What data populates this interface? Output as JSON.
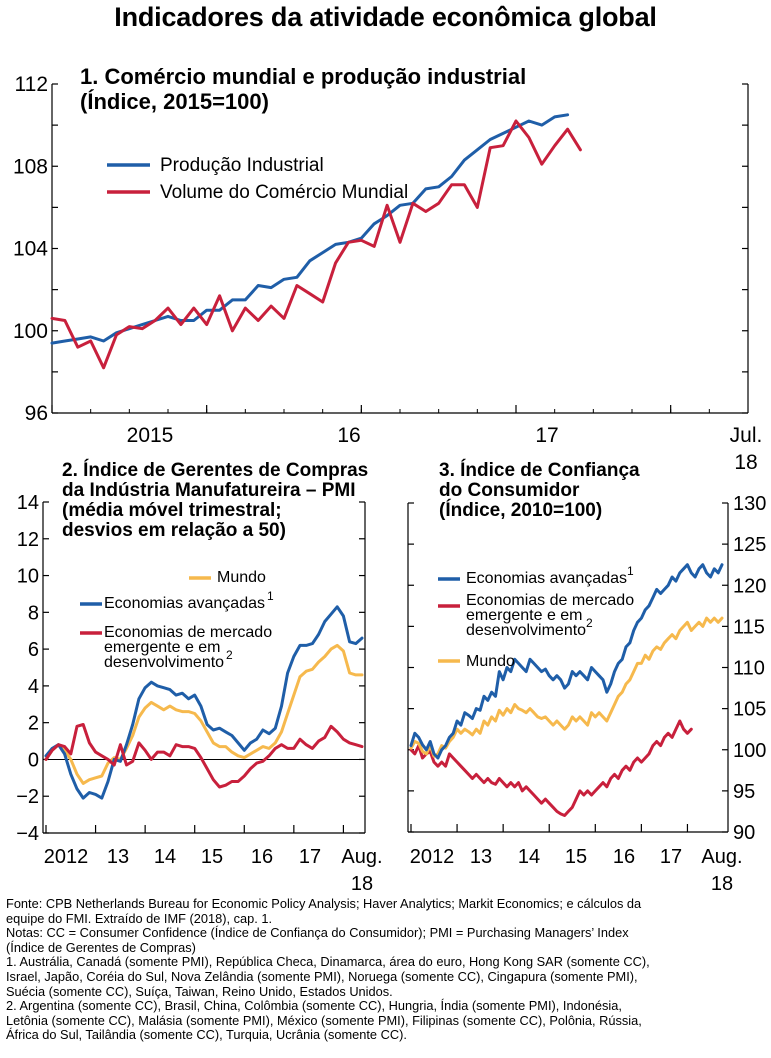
{
  "title": "Indicadores da atividade econômica global",
  "colors": {
    "blue": "#1f5ea8",
    "red": "#c8203c",
    "yellow": "#f6b94d",
    "axis": "#000000"
  },
  "chart_data": [
    {
      "id": "panel1",
      "type": "line",
      "title_lines": [
        "1.   Comércio mundial e produção industrial",
        "(Índice, 2015=100)"
      ],
      "ylim": [
        96,
        112
      ],
      "yticks": [
        "96",
        "100",
        "104",
        "108",
        "112"
      ],
      "xlabels": [
        "2015",
        "16",
        "17",
        "Jul.",
        "18"
      ],
      "x_unit": "months since Jan 2014",
      "xlim": [
        0,
        54
      ],
      "series": [
        {
          "name": "Produção Industrial",
          "color": "blue",
          "values": [
            99.4,
            99.5,
            99.6,
            99.7,
            99.5,
            99.9,
            100.1,
            100.3,
            100.5,
            100.7,
            100.5,
            100.5,
            101.0,
            101.0,
            101.5,
            101.5,
            102.2,
            102.1,
            102.5,
            102.6,
            103.4,
            103.8,
            104.2,
            104.3,
            104.5,
            105.2,
            105.6,
            106.1,
            106.2,
            106.9,
            107.0,
            107.5,
            108.3,
            108.8,
            109.3,
            109.6,
            109.9,
            110.2,
            110.0,
            110.4,
            110.5
          ],
          "x": [
            0,
            1,
            2,
            3,
            4,
            5,
            6,
            7,
            8,
            9,
            10,
            11,
            12,
            13,
            14,
            15,
            16,
            17,
            18,
            19,
            20,
            21,
            22,
            23,
            24,
            25,
            26,
            27,
            28,
            29,
            30,
            31,
            32,
            33,
            34,
            35,
            36,
            37,
            38,
            39,
            40
          ]
        },
        {
          "name": "Volume do Comércio Mundial",
          "color": "red",
          "values": [
            100.6,
            100.5,
            99.2,
            99.5,
            98.2,
            99.8,
            100.2,
            100.1,
            100.5,
            101.1,
            100.3,
            101.1,
            100.3,
            101.7,
            100.0,
            101.1,
            100.5,
            101.2,
            100.6,
            102.2,
            101.8,
            101.4,
            103.3,
            104.3,
            104.4,
            104.1,
            106.1,
            104.3,
            106.2,
            105.8,
            106.2,
            107.1,
            107.1,
            106.0,
            108.9,
            109.0,
            110.2,
            109.4,
            108.1,
            109.0,
            109.8,
            108.8
          ],
          "x": [
            0,
            1,
            2,
            3,
            4,
            5,
            6,
            7,
            8,
            9,
            10,
            11,
            12,
            13,
            14,
            15,
            16,
            17,
            18,
            19,
            20,
            21,
            22,
            23,
            24,
            25,
            26,
            27,
            28,
            29,
            30,
            31,
            32,
            33,
            34,
            35,
            36,
            37,
            38,
            39,
            40,
            41
          ]
        }
      ]
    },
    {
      "id": "panel2",
      "type": "line",
      "title_lines": [
        "2.  Índice de Gerentes de Compras",
        "da Indústria Manufatureira – PMI",
        "(média móvel trimestral;",
        "desvios em relação a 50)"
      ],
      "ylim": [
        -4,
        14
      ],
      "yticks": [
        "−4",
        "−2",
        "0",
        "2",
        "4",
        "6",
        "8",
        "10",
        "12",
        "14"
      ],
      "xlabels": [
        "2012",
        "13",
        "14",
        "15",
        "16",
        "17",
        "Aug.",
        "18"
      ],
      "series": [
        {
          "name": "Mundo",
          "sup": "",
          "color": "yellow",
          "values": [
            0.0,
            0.5,
            0.8,
            0.5,
            0.0,
            -0.8,
            -1.3,
            -1.1,
            -1.0,
            -0.9,
            -0.2,
            0.1,
            0.0,
            0.6,
            1.3,
            2.3,
            2.8,
            3.1,
            2.9,
            2.7,
            2.9,
            2.7,
            2.6,
            2.6,
            2.5,
            2.1,
            1.5,
            0.9,
            0.7,
            0.7,
            0.4,
            0.2,
            0.1,
            0.3,
            0.5,
            0.7,
            0.6,
            0.9,
            1.5,
            2.5,
            3.5,
            4.5,
            4.8,
            4.9,
            5.3,
            5.6,
            6.0,
            6.2,
            5.9,
            4.7,
            4.6,
            4.6
          ]
        },
        {
          "name": "Economias avançadas",
          "sup": "1",
          "color": "blue",
          "values": [
            0.2,
            0.6,
            0.8,
            0.3,
            -0.8,
            -1.6,
            -2.1,
            -1.8,
            -1.9,
            -2.1,
            -1.2,
            0.0,
            -0.1,
            0.8,
            1.9,
            3.3,
            3.9,
            4.2,
            4.0,
            3.9,
            3.8,
            3.5,
            3.6,
            3.3,
            3.5,
            2.9,
            1.9,
            1.6,
            1.7,
            1.5,
            1.3,
            0.9,
            0.5,
            0.9,
            1.1,
            1.6,
            1.4,
            1.7,
            2.9,
            4.7,
            5.6,
            6.2,
            6.2,
            6.3,
            6.8,
            7.5,
            7.9,
            8.3,
            7.8,
            6.4,
            6.3,
            6.6
          ]
        },
        {
          "name": "Economias de mercado emergente e em desenvolvimento",
          "sup": "2",
          "color": "red",
          "values": [
            0.0,
            0.5,
            0.8,
            0.7,
            0.3,
            1.8,
            1.9,
            0.9,
            0.4,
            0.2,
            0.0,
            -0.3,
            0.8,
            -0.3,
            -0.1,
            0.9,
            0.5,
            0.0,
            0.4,
            0.4,
            0.2,
            0.8,
            0.7,
            0.7,
            0.6,
            0.1,
            -0.5,
            -1.1,
            -1.5,
            -1.4,
            -1.2,
            -1.2,
            -0.9,
            -0.5,
            -0.2,
            -0.1,
            0.2,
            0.6,
            0.8,
            0.6,
            0.6,
            1.1,
            0.8,
            0.6,
            1.0,
            1.2,
            1.8,
            1.5,
            1.1,
            0.9,
            0.8,
            0.7
          ]
        }
      ]
    },
    {
      "id": "panel3",
      "type": "line",
      "title_lines": [
        "3.  Índice de Confiança",
        "do Consumidor",
        "(Índice, 2010=100)"
      ],
      "ylim": [
        90,
        130
      ],
      "yticks": [
        "90",
        "95",
        "100",
        "105",
        "110",
        "115",
        "120",
        "125",
        "130"
      ],
      "xlabels": [
        "2012",
        "13",
        "14",
        "15",
        "16",
        "17",
        "Aug.",
        "18"
      ],
      "series": [
        {
          "name": "Economias avançadas",
          "sup": "1",
          "color": "blue",
          "values": [
            100.5,
            102.0,
            101.5,
            100.6,
            100.0,
            101.0,
            99.5,
            99.0,
            100.0,
            100.5,
            101.5,
            102.0,
            103.5,
            103.0,
            104.5,
            104.2,
            103.8,
            105.0,
            104.8,
            106.5,
            106.0,
            107.0,
            106.5,
            109.5,
            108.5,
            110.0,
            109.5,
            111.0,
            110.5,
            110.0,
            109.5,
            111.0,
            110.5,
            110.0,
            109.5,
            109.8,
            109.0,
            108.5,
            109.0,
            108.5,
            107.5,
            108.0,
            109.5,
            109.0,
            109.5,
            109.0,
            108.5,
            110.0,
            109.5,
            109.0,
            108.5,
            107.0,
            108.0,
            109.5,
            110.5,
            111.0,
            112.5,
            113.0,
            114.5,
            115.5,
            116.0,
            117.0,
            117.5,
            118.5,
            119.5,
            119.0,
            119.5,
            120.0,
            121.0,
            120.5,
            121.5,
            122.0,
            122.5,
            121.5,
            121.0,
            122.0,
            122.5,
            121.5,
            121.0,
            122.0,
            121.5,
            122.5
          ]
        },
        {
          "name": "Economias de mercado emergente e em desenvolvimento",
          "sup": "2",
          "color": "red",
          "values": [
            100.0,
            99.5,
            100.5,
            99.0,
            99.5,
            99.8,
            98.5,
            98.0,
            98.5,
            98.0,
            99.5,
            99.0,
            98.5,
            98.0,
            97.5,
            97.0,
            96.5,
            97.0,
            96.5,
            96.0,
            96.5,
            96.0,
            95.8,
            96.5,
            96.0,
            95.5,
            96.0,
            95.5,
            96.0,
            95.0,
            95.5,
            95.0,
            94.5,
            94.0,
            93.5,
            94.0,
            93.5,
            93.0,
            92.5,
            92.2,
            92.0,
            92.5,
            93.0,
            94.0,
            95.0,
            94.5,
            95.0,
            94.5,
            95.0,
            95.5,
            96.0,
            95.5,
            96.5,
            97.0,
            96.5,
            97.5,
            98.0,
            97.5,
            98.5,
            99.0,
            98.5,
            99.0,
            99.5,
            100.5,
            101.0,
            100.5,
            101.5,
            102.0,
            101.5,
            102.5,
            103.5,
            102.5,
            102.0,
            102.5
          ]
        },
        {
          "name": "Mundo",
          "sup": "",
          "color": "yellow",
          "values": [
            100.2,
            101.0,
            100.8,
            99.8,
            99.5,
            100.5,
            99.2,
            99.5,
            100.5,
            100.2,
            101.0,
            101.5,
            102.5,
            102.0,
            102.5,
            102.2,
            101.8,
            102.5,
            102.0,
            103.5,
            103.0,
            104.0,
            103.5,
            104.8,
            104.2,
            105.0,
            104.5,
            105.5,
            105.0,
            104.8,
            104.5,
            105.0,
            104.5,
            104.0,
            103.8,
            104.0,
            103.5,
            103.0,
            103.5,
            103.0,
            102.5,
            103.0,
            104.0,
            103.5,
            104.0,
            103.5,
            103.0,
            104.5,
            104.0,
            104.5,
            104.0,
            103.5,
            104.5,
            105.5,
            106.5,
            107.0,
            108.0,
            108.5,
            109.5,
            110.5,
            110.5,
            111.5,
            111.0,
            112.0,
            112.5,
            112.2,
            113.0,
            113.5,
            114.0,
            113.5,
            114.5,
            115.0,
            115.5,
            114.5,
            115.0,
            115.5,
            115.0,
            116.0,
            115.5,
            116.0,
            115.5,
            116.0
          ]
        }
      ]
    }
  ],
  "notes": [
    "Fonte: CPB Netherlands Bureau for Economic Policy Analysis; Haver Analytics; Markit Economics; e cálculos da",
    "equipe do FMI. Extraído de IMF (2018), cap. 1.",
    "Notas: CC = Consumer Confidence (Índice de Confiança do Consumidor); PMI = Purchasing Managers’ Index",
    "(Índice de Gerentes de Compras)",
    "1. Austrália, Canadá (somente PMI), República Checa, Dinamarca, área do euro, Hong Kong SAR (somente CC),",
    "Israel, Japão, Coréia do Sul, Nova Zelândia (somente PMI), Noruega (somente CC), Cingapura (somente PMI),",
    "Suécia (somente CC), Suíça, Taiwan, Reino Unido, Estados Unidos.",
    "2. Argentina (somente CC), Brasil, China, Colômbia (somente CC), Hungria, Índia (somente PMI), Indonésia,",
    "Letônia (somente CC), Malásia (somente PMI), México (somente PMI), Filipinas (somente CC), Polônia, Rússia,",
    "África do Sul, Tailândia (somente CC), Turquia, Ucrânia (somente CC)."
  ]
}
